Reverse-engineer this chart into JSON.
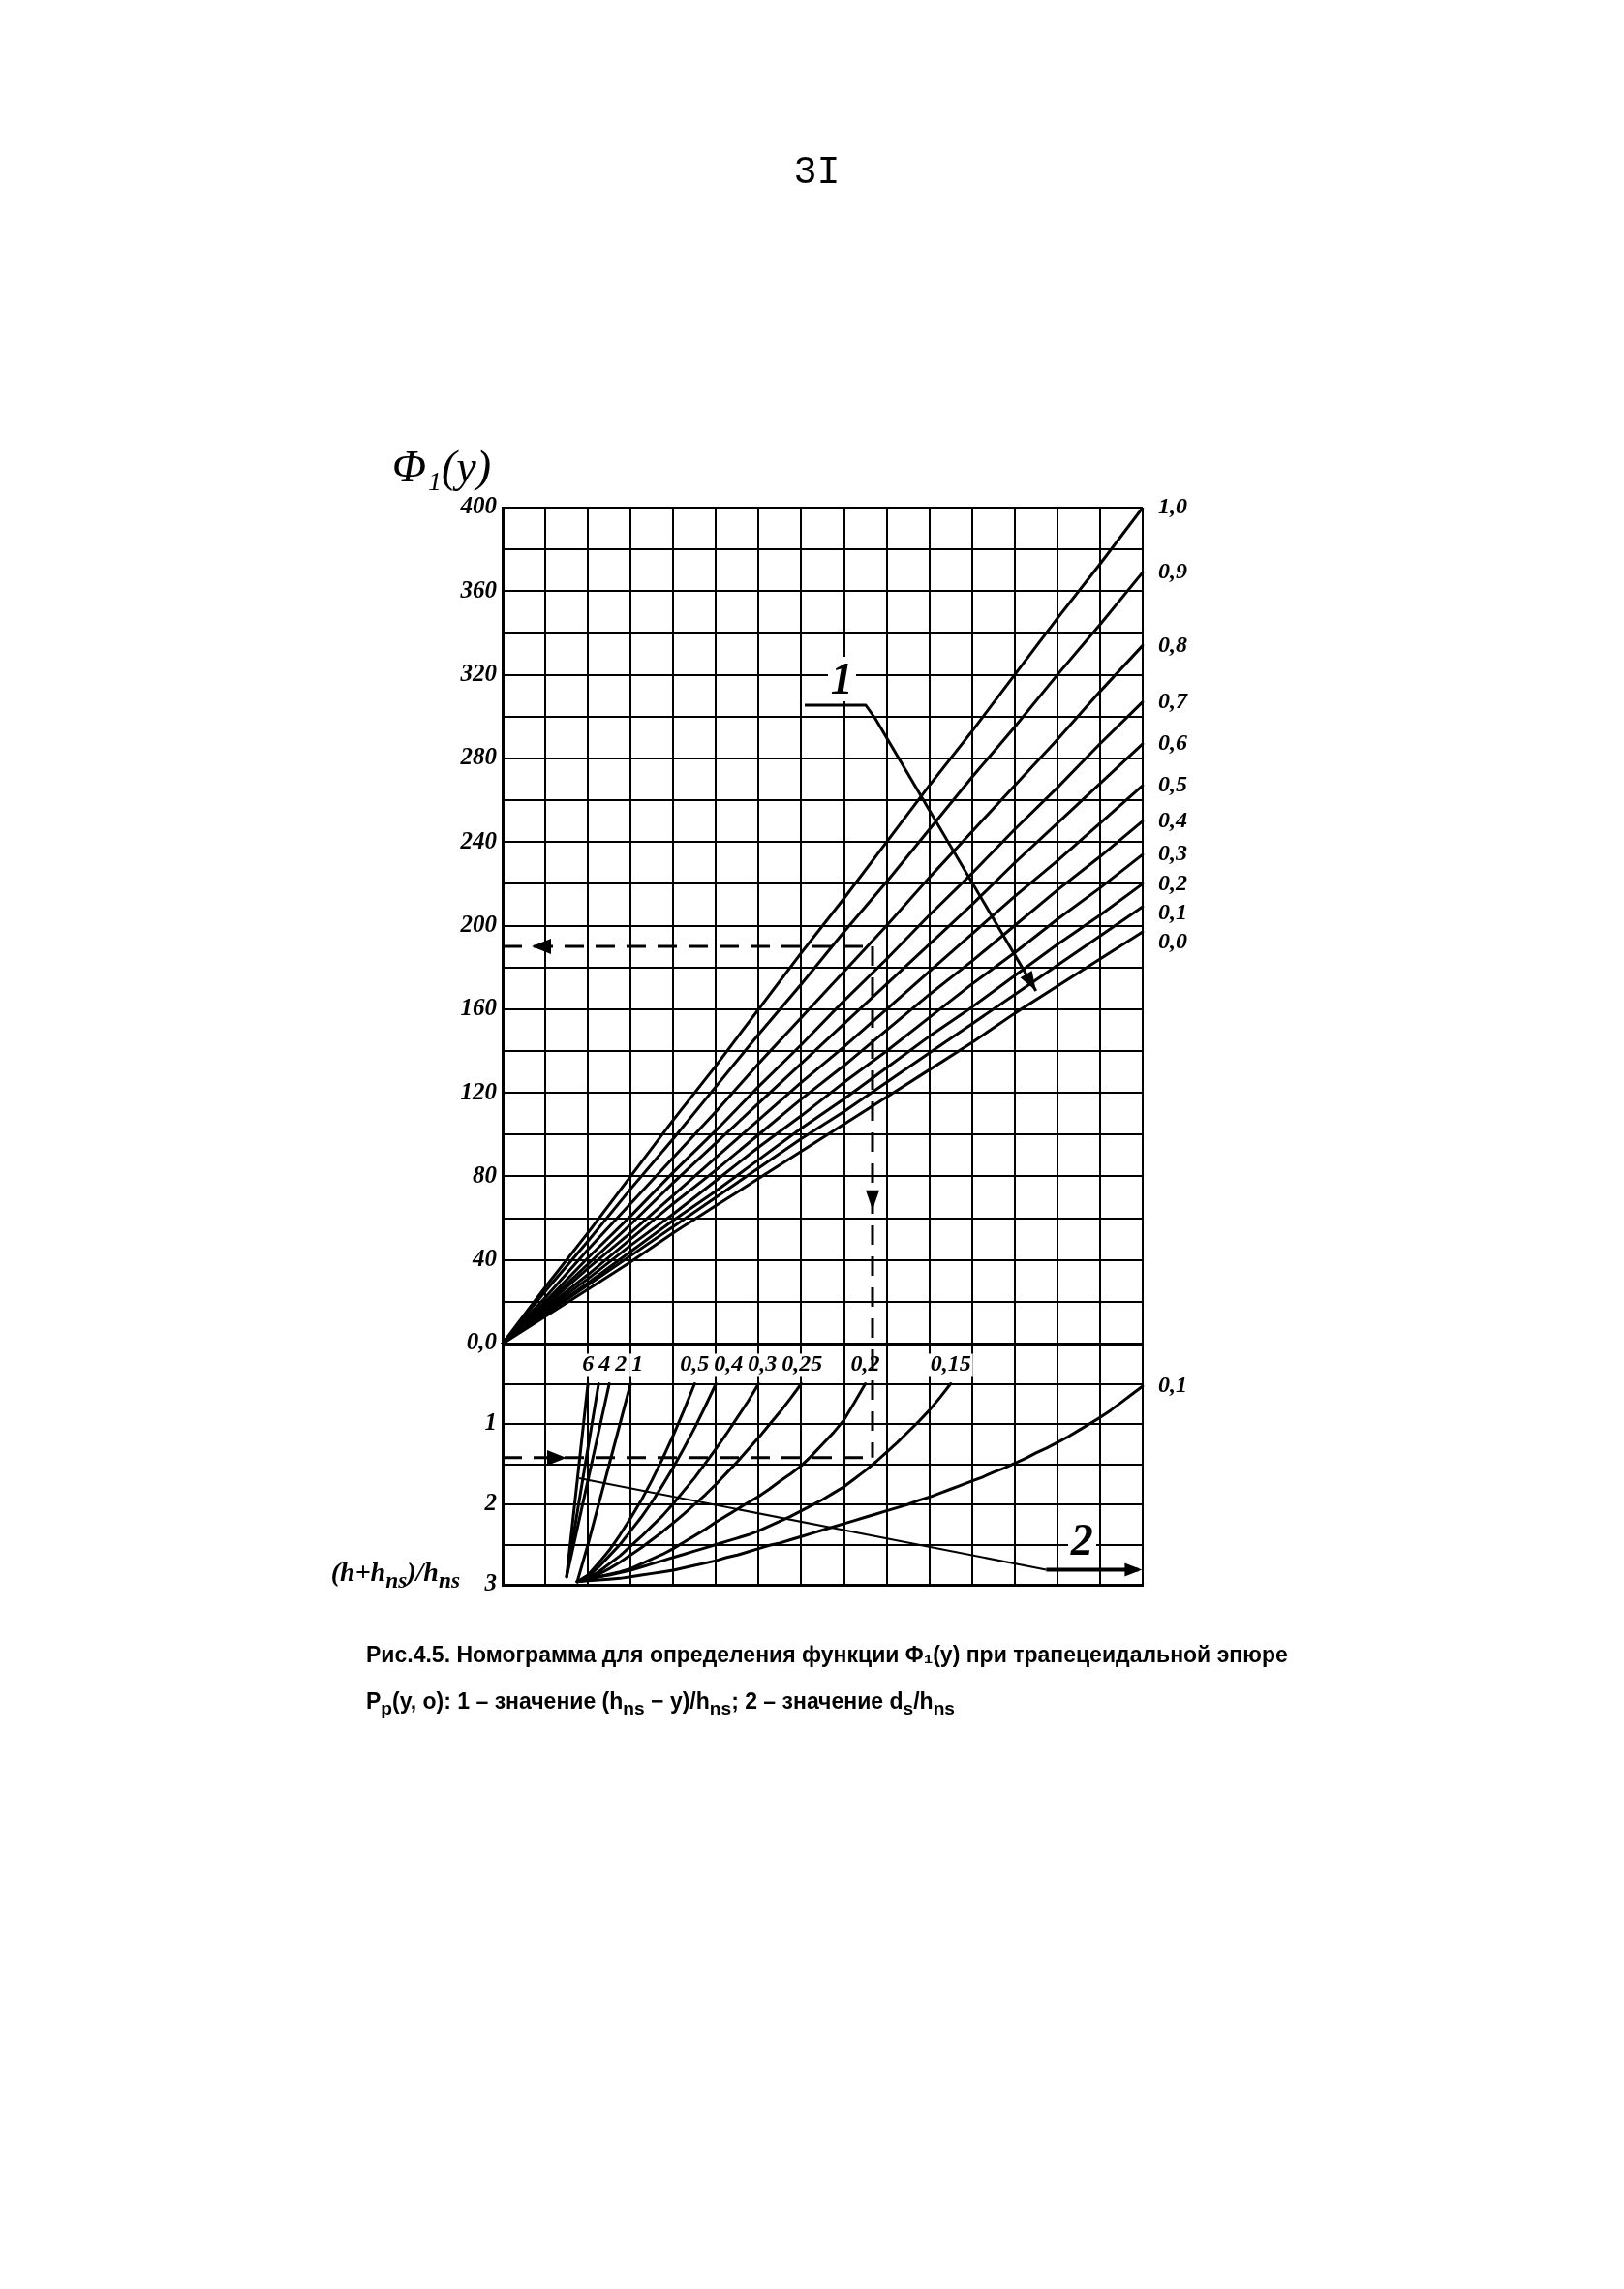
{
  "chart_data": [
    {
      "type": "line",
      "ylabel": "Φ₁(y)",
      "categories": [
        null,
        null,
        null,
        null,
        null,
        null,
        null,
        null,
        null,
        null,
        null,
        null,
        null,
        null,
        null,
        null
      ],
      "series": [
        {
          "name": "1,0",
          "color": "#000000",
          "values": [
            0,
            27,
            53,
            80,
            107,
            133,
            160,
            187,
            213,
            240,
            267,
            293,
            320,
            347,
            373,
            400
          ]
        },
        {
          "name": "0,9",
          "color": "#000000",
          "values": [
            0,
            25,
            49,
            74,
            98,
            123,
            148,
            172,
            197,
            221,
            246,
            271,
            295,
            320,
            344,
            369
          ]
        },
        {
          "name": "0,8",
          "color": "#000000",
          "values": [
            0,
            22,
            45,
            67,
            89,
            111,
            134,
            156,
            178,
            200,
            223,
            245,
            267,
            289,
            312,
            334
          ]
        },
        {
          "name": "0,7",
          "color": "#000000",
          "values": [
            0,
            20,
            41,
            61,
            82,
            102,
            123,
            143,
            164,
            184,
            205,
            225,
            246,
            266,
            287,
            307
          ]
        },
        {
          "name": "0,6",
          "color": "#000000",
          "values": [
            0,
            19,
            38,
            57,
            77,
            96,
            115,
            134,
            153,
            172,
            191,
            210,
            230,
            249,
            268,
            287
          ]
        },
        {
          "name": "0,5",
          "color": "#000000",
          "values": [
            0,
            18,
            36,
            53,
            71,
            89,
            107,
            125,
            142,
            160,
            178,
            196,
            214,
            231,
            249,
            267
          ]
        },
        {
          "name": "0,4",
          "color": "#000000",
          "values": [
            0,
            17,
            33,
            50,
            67,
            83,
            100,
            117,
            133,
            150,
            167,
            183,
            200,
            217,
            233,
            250
          ]
        },
        {
          "name": "0,3",
          "color": "#000000",
          "values": [
            0,
            16,
            31,
            47,
            62,
            78,
            94,
            109,
            125,
            140,
            156,
            172,
            187,
            203,
            218,
            234
          ]
        },
        {
          "name": "0,2",
          "color": "#000000",
          "values": [
            0,
            15,
            29,
            44,
            59,
            73,
            88,
            103,
            117,
            132,
            147,
            161,
            176,
            191,
            205,
            220
          ]
        },
        {
          "name": "0,1",
          "color": "#000000",
          "values": [
            0,
            14,
            28,
            42,
            56,
            70,
            84,
            98,
            111,
            125,
            139,
            153,
            167,
            181,
            195,
            209
          ]
        },
        {
          "name": "0,0",
          "color": "#000000",
          "values": [
            0,
            13,
            26,
            39,
            53,
            66,
            79,
            92,
            105,
            118,
            131,
            144,
            158,
            171,
            184,
            197
          ]
        }
      ],
      "ylim": [
        0,
        400
      ],
      "yticks": [
        {
          "value": 0,
          "label": "0,0"
        },
        {
          "value": 20,
          "label": null
        },
        40,
        {
          "value": 60,
          "label": null
        },
        80,
        {
          "value": 100,
          "label": null
        },
        120,
        {
          "value": 140,
          "label": null
        },
        160,
        {
          "value": 180,
          "label": null
        },
        200,
        {
          "value": 220,
          "label": null
        },
        240,
        {
          "value": 260,
          "label": null
        },
        280,
        {
          "value": 300,
          "label": null
        },
        320,
        {
          "value": 340,
          "label": null
        },
        360,
        {
          "value": 380,
          "label": null
        },
        400
      ],
      "ref_lines": [
        {
          "axis": "y",
          "value": 190,
          "line_style": "dashed"
        }
      ],
      "grid": true,
      "tick_labels": "y",
      "marker": "none",
      "line_style": "solid",
      "annotations": [
        "3I",
        "1"
      ]
    },
    {
      "type": "line",
      "ylabel": "(h+h$_{ns}$)/h$_{ns}$",
      "categories": [
        null,
        null,
        null,
        null,
        null,
        null,
        null,
        null,
        null,
        null,
        null,
        null,
        null,
        null,
        null,
        null,
        null,
        null,
        null,
        null,
        null,
        null,
        null,
        null,
        null,
        null,
        null,
        null,
        null,
        null,
        null,
        null,
        null,
        null,
        null,
        null,
        null,
        null,
        null,
        null,
        null,
        null,
        null,
        null,
        null,
        null,
        null,
        null,
        null,
        null,
        null,
        null,
        null,
        null,
        null,
        null,
        null,
        null,
        null,
        null,
        null
      ],
      "series": [
        {
          "name": "6",
          "color": "#000000",
          "values": [
            null,
            null,
            null,
            null,
            null,
            null,
            2.9,
            1.7,
            0.5,
            null,
            null,
            null,
            null,
            null,
            null,
            null,
            null,
            null,
            null,
            null,
            null,
            null,
            null,
            null,
            null,
            null,
            null,
            null,
            null,
            null,
            null,
            null,
            null,
            null,
            null,
            null,
            null,
            null,
            null,
            null,
            null,
            null,
            null,
            null,
            null,
            null,
            null,
            null,
            null,
            null,
            null,
            null,
            null,
            null,
            null,
            null,
            null,
            null,
            null,
            null,
            null
          ]
        },
        {
          "name": "4",
          "color": "#000000",
          "values": [
            null,
            null,
            null,
            null,
            null,
            null,
            2.9,
            2.1,
            1.3,
            0.5,
            null,
            null,
            null,
            null,
            null,
            null,
            null,
            null,
            null,
            null,
            null,
            null,
            null,
            null,
            null,
            null,
            null,
            null,
            null,
            null,
            null,
            null,
            null,
            null,
            null,
            null,
            null,
            null,
            null,
            null,
            null,
            null,
            null,
            null,
            null,
            null,
            null,
            null,
            null,
            null,
            null,
            null,
            null,
            null,
            null,
            null,
            null,
            null,
            null,
            null,
            null
          ]
        },
        {
          "name": "2",
          "color": "#000000",
          "values": [
            null,
            null,
            null,
            null,
            null,
            null,
            2.9,
            2.3,
            1.7,
            1.1,
            0.5,
            null,
            null,
            null,
            null,
            null,
            null,
            null,
            null,
            null,
            null,
            null,
            null,
            null,
            null,
            null,
            null,
            null,
            null,
            null,
            null,
            null,
            null,
            null,
            null,
            null,
            null,
            null,
            null,
            null,
            null,
            null,
            null,
            null,
            null,
            null,
            null,
            null,
            null,
            null,
            null,
            null,
            null,
            null,
            null,
            null,
            null,
            null,
            null,
            null,
            null
          ]
        },
        {
          "name": "1",
          "color": "#000000",
          "values": [
            null,
            null,
            null,
            null,
            null,
            null,
            null,
            2.96,
            2.5,
            2.0,
            1.5,
            1.0,
            0.5,
            null,
            null,
            null,
            null,
            null,
            null,
            null,
            null,
            null,
            null,
            null,
            null,
            null,
            null,
            null,
            null,
            null,
            null,
            null,
            null,
            null,
            null,
            null,
            null,
            null,
            null,
            null,
            null,
            null,
            null,
            null,
            null,
            null,
            null,
            null,
            null,
            null,
            null,
            null,
            null,
            null,
            null,
            null,
            null,
            null,
            null,
            null,
            null
          ]
        },
        {
          "name": "0,5",
          "color": "#000000",
          "values": [
            null,
            null,
            null,
            null,
            null,
            null,
            null,
            2.96,
            2.88,
            2.73,
            2.57,
            2.38,
            2.17,
            1.95,
            1.7,
            1.43,
            1.14,
            0.83,
            0.5,
            null,
            null,
            null,
            null,
            null,
            null,
            null,
            null,
            null,
            null,
            null,
            null,
            null,
            null,
            null,
            null,
            null,
            null,
            null,
            null,
            null,
            null,
            null,
            null,
            null,
            null,
            null,
            null,
            null,
            null,
            null,
            null,
            null,
            null,
            null,
            null,
            null,
            null,
            null,
            null,
            null,
            null
          ]
        },
        {
          "name": "0,4",
          "color": "#000000",
          "values": [
            null,
            null,
            null,
            null,
            null,
            null,
            null,
            2.96,
            2.9,
            2.78,
            2.64,
            2.5,
            2.33,
            2.16,
            1.97,
            1.76,
            1.54,
            1.3,
            1.05,
            0.78,
            0.5,
            null,
            null,
            null,
            null,
            null,
            null,
            null,
            null,
            null,
            null,
            null,
            null,
            null,
            null,
            null,
            null,
            null,
            null,
            null,
            null,
            null,
            null,
            null,
            null,
            null,
            null,
            null,
            null,
            null,
            null,
            null,
            null,
            null,
            null,
            null,
            null,
            null,
            null,
            null,
            null
          ]
        },
        {
          "name": "0,3",
          "color": "#000000",
          "values": [
            null,
            null,
            null,
            null,
            null,
            null,
            null,
            2.96,
            2.92,
            2.84,
            2.74,
            2.64,
            2.52,
            2.4,
            2.27,
            2.14,
            1.99,
            1.83,
            1.67,
            1.49,
            1.31,
            1.12,
            0.92,
            0.72,
            0.5,
            null,
            null,
            null,
            null,
            null,
            null,
            null,
            null,
            null,
            null,
            null,
            null,
            null,
            null,
            null,
            null,
            null,
            null,
            null,
            null,
            null,
            null,
            null,
            null,
            null,
            null,
            null,
            null,
            null,
            null,
            null,
            null,
            null,
            null,
            null,
            null
          ]
        },
        {
          "name": "0,25",
          "color": "#000000",
          "values": [
            null,
            null,
            null,
            null,
            null,
            null,
            null,
            2.96,
            2.94,
            2.87,
            2.8,
            2.72,
            2.63,
            2.54,
            2.44,
            2.34,
            2.23,
            2.12,
            2.0,
            1.88,
            1.75,
            1.61,
            1.47,
            1.32,
            1.17,
            1.01,
            0.85,
            0.68,
            0.5,
            null,
            null,
            null,
            null,
            null,
            null,
            null,
            null,
            null,
            null,
            null,
            null,
            null,
            null,
            null,
            null,
            null,
            null,
            null,
            null,
            null,
            null,
            null,
            null,
            null,
            null,
            null,
            null,
            null,
            null,
            null,
            null
          ]
        },
        {
          "name": "0,2",
          "color": "#000000",
          "values": [
            null,
            null,
            null,
            null,
            null,
            null,
            null,
            2.96,
            2.93,
            2.9,
            2.87,
            2.84,
            2.8,
            2.74,
            2.68,
            2.62,
            2.55,
            2.47,
            2.39,
            2.31,
            2.22,
            2.14,
            2.06,
            1.98,
            1.9,
            1.81,
            1.71,
            1.62,
            1.52,
            1.39,
            1.25,
            1.11,
            0.95,
            0.73,
            0.5,
            null,
            null,
            null,
            null,
            null,
            null,
            null,
            null,
            null,
            null,
            null,
            null,
            null,
            null,
            null,
            null,
            null,
            null,
            null,
            null,
            null,
            null,
            null,
            null,
            null,
            null
          ]
        },
        {
          "name": "0,15",
          "color": "#000000",
          "values": [
            null,
            null,
            null,
            null,
            null,
            null,
            null,
            2.96,
            2.93,
            2.9,
            2.88,
            2.85,
            2.82,
            2.78,
            2.74,
            2.7,
            2.66,
            2.62,
            2.58,
            2.54,
            2.5,
            2.46,
            2.42,
            2.38,
            2.33,
            2.27,
            2.21,
            2.15,
            2.08,
            2.01,
            1.94,
            1.86,
            1.78,
            1.68,
            1.58,
            1.47,
            1.35,
            1.23,
            1.1,
            0.97,
            0.83,
            0.67,
            0.5,
            null,
            null,
            null,
            null,
            null,
            null,
            null,
            null,
            null,
            null,
            null,
            null,
            null,
            null,
            null,
            null,
            null,
            null
          ]
        },
        {
          "name": "0,1",
          "color": "#000000",
          "values": [
            null,
            null,
            null,
            null,
            null,
            null,
            null,
            2.96,
            2.95,
            2.94,
            2.93,
            2.92,
            2.9,
            2.88,
            2.86,
            2.84,
            2.82,
            2.79,
            2.76,
            2.73,
            2.7,
            2.66,
            2.63,
            2.59,
            2.55,
            2.51,
            2.48,
            2.44,
            2.4,
            2.36,
            2.32,
            2.28,
            2.24,
            2.2,
            2.16,
            2.12,
            2.08,
            2.04,
            2.0,
            1.95,
            1.91,
            1.86,
            1.81,
            1.76,
            1.71,
            1.66,
            1.6,
            1.55,
            1.49,
            1.43,
            1.36,
            1.3,
            1.23,
            1.16,
            1.08,
            1.0,
            0.92,
            0.83,
            0.73,
            0.63,
            0.53
          ]
        }
      ],
      "ylim": [
        3,
        0
      ],
      "yticks": [
        {
          "value": 0,
          "label": null
        },
        {
          "value": 0.5,
          "label": null
        },
        1,
        {
          "value": 1.5,
          "label": null
        },
        2,
        {
          "value": 2.5,
          "label": null
        },
        3
      ],
      "ref_lines": [
        {
          "axis": "y",
          "value": 1.42,
          "line_style": "dashed"
        }
      ],
      "grid": true,
      "tick_labels": "y",
      "marker": "none",
      "line_style": "solid",
      "annotations": [
        "2",
        "Рис.4.5. Номограмма для определения функции Φ₁(y) при трапецеидальной эпюре P$_{p}$(y, o): 1 – значение (h$_{ns}$ − y)/h$_{ns}$; 2 – значение d$_{s}$/h$_{ns}$"
      ]
    }
  ]
}
